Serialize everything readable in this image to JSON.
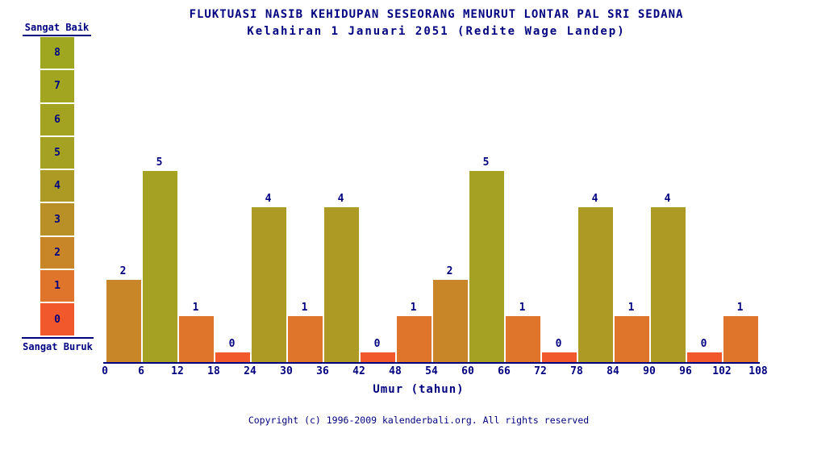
{
  "title": "FLUKTUASI NASIB KEHIDUPAN SESEORANG MENURUT LONTAR PAL SRI SEDANA",
  "subtitle": "Kelahiran 1 Januari 2051 (Redite Wage Landep)",
  "legend": {
    "top_label": "Sangat Baik",
    "bottom_label": "Sangat Buruk",
    "levels": [
      {
        "value": 8,
        "color": "#9FA61F"
      },
      {
        "value": 7,
        "color": "#A1A520"
      },
      {
        "value": 6,
        "color": "#A3A321"
      },
      {
        "value": 5,
        "color": "#A5A122"
      },
      {
        "value": 4,
        "color": "#AC9A24"
      },
      {
        "value": 3,
        "color": "#B89027"
      },
      {
        "value": 2,
        "color": "#C88628"
      },
      {
        "value": 1,
        "color": "#DF742B"
      },
      {
        "value": 0,
        "color": "#F1582B"
      }
    ]
  },
  "chart_data": {
    "type": "bar",
    "categories": [
      "0-6",
      "6-12",
      "12-18",
      "18-24",
      "24-30",
      "30-36",
      "36-42",
      "42-48",
      "48-54",
      "54-60",
      "60-66",
      "66-72",
      "72-78",
      "78-84",
      "84-90",
      "90-96",
      "96-102",
      "102-108"
    ],
    "values": [
      2,
      5,
      1,
      0,
      4,
      1,
      4,
      0,
      1,
      2,
      5,
      1,
      0,
      4,
      1,
      4,
      0,
      1
    ],
    "x_ticks": [
      0,
      6,
      12,
      18,
      24,
      30,
      36,
      42,
      48,
      54,
      60,
      66,
      72,
      78,
      84,
      90,
      96,
      102,
      108
    ],
    "title": "FLUKTUASI NASIB KEHIDUPAN SESEORANG MENURUT LONTAR PAL SRI SEDANA",
    "subtitle": "Kelahiran 1 Januari 2051 (Redite Wage Landep)",
    "xlabel": "Umur (tahun)",
    "ylabel": "",
    "ylim": [
      0,
      8
    ],
    "grid": false,
    "legend_position": "left",
    "value_color_scale": "0=worst (red-orange) to 8=best (olive green), per legend.levels"
  },
  "footer": {
    "copyright": "Copyright (c) 1996-2009 kalenderbali.org. All rights reserved"
  },
  "colors": {
    "text": "#000080",
    "background": "#FFFFFF",
    "axis": "#000080"
  }
}
